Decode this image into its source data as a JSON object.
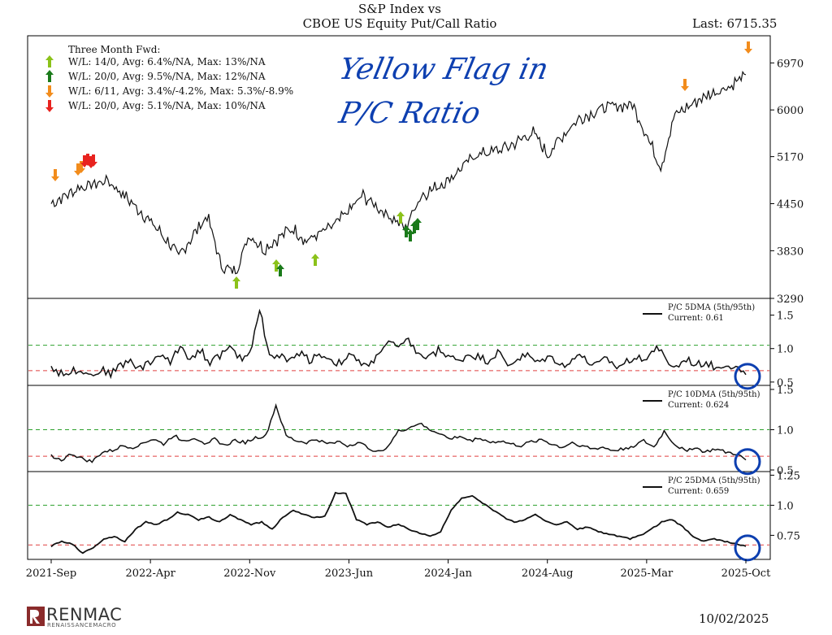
{
  "header": {
    "title_line1": "S&P Index vs",
    "title_line2": "CBOE US Equity Put/Call Ratio",
    "last_label": "Last: 6715.35"
  },
  "annotation": {
    "line1": "Yellow Flag in",
    "line2": "P/C Ratio"
  },
  "footer": {
    "logo_text": "RENMAC",
    "logo_sub": "RENAISSANCEMACRO",
    "date": "10/02/2025"
  },
  "colors": {
    "price_line": "#111111",
    "green_dash": "#2ca02c",
    "red_dash": "#e04040",
    "light_green_arrow": "#8bc21a",
    "dark_green_arrow": "#1a7a1a",
    "orange_arrow": "#f28c1c",
    "red_arrow": "#e8231f",
    "annotation_ink": "#0d3fb0"
  },
  "chart_data": [
    {
      "type": "line",
      "title": "S&P Index vs CBOE US Equity Put/Call Ratio",
      "x_ticks": [
        "2021-Sep",
        "2022-Apr",
        "2022-Nov",
        "2023-Jun",
        "2024-Jan",
        "2024-Aug",
        "2025-Mar",
        "2025-Oct"
      ],
      "y_ticks": [
        3290,
        3830,
        4450,
        5170,
        6000,
        6970
      ],
      "y_scale": "log",
      "ylim": [
        3290,
        7600
      ],
      "series": [
        {
          "x": [
            "2021-09",
            "2021-11",
            "2022-01",
            "2022-03",
            "2022-05",
            "2022-06",
            "2022-08",
            "2022-09",
            "2022-10",
            "2022-11",
            "2022-12",
            "2023-02",
            "2023-03",
            "2023-05",
            "2023-07",
            "2023-08",
            "2023-10",
            "2023-11",
            "2024-01",
            "2024-03",
            "2024-05",
            "2024-07",
            "2024-08",
            "2024-10",
            "2024-12",
            "2025-02",
            "2025-04",
            "2025-05",
            "2025-07",
            "2025-09",
            "2025-10"
          ],
          "values": [
            4450,
            4680,
            4790,
            4400,
            4000,
            3760,
            4280,
            3640,
            3580,
            4030,
            3850,
            4120,
            3950,
            4150,
            4560,
            4400,
            4120,
            4550,
            4800,
            5200,
            5300,
            5580,
            5200,
            5800,
            6050,
            6100,
            4980,
            5900,
            6250,
            6500,
            6715
          ]
        }
      ],
      "legend_title": "Three Month Fwd:",
      "legend": [
        {
          "arrow": "up",
          "color": "#8bc21a",
          "label": "W/L: 14/0, Avg: 6.4%/NA, Max: 13%/NA"
        },
        {
          "arrow": "up",
          "color": "#1a7a1a",
          "label": "W/L: 20/0, Avg: 9.5%/NA, Max: 12%/NA"
        },
        {
          "arrow": "down",
          "color": "#f28c1c",
          "label": "W/L: 6/11, Avg: 3.4%/-4.2%, Max: 5.3%/-8.9%"
        },
        {
          "arrow": "down",
          "color": "#e8231f",
          "label": "W/L: 20/0, Avg: 5.1%/NA, Max: 10%/NA"
        }
      ],
      "signals": [
        {
          "type": "orange",
          "dates": [
            "2021-09",
            "2021-11"
          ]
        },
        {
          "type": "red",
          "dates": [
            "2021-11",
            "2021-12"
          ]
        },
        {
          "type": "light_green",
          "dates": [
            "2022-10",
            "2022-11",
            "2023-02",
            "2023-10"
          ]
        },
        {
          "type": "dark_green",
          "dates": [
            "2022-12",
            "2023-10",
            "2023-11"
          ]
        },
        {
          "type": "orange",
          "dates": [
            "2025-05",
            "2025-10"
          ]
        }
      ],
      "legend_position": "top-left"
    },
    {
      "type": "line",
      "legend_label": "P/C 5DMA (5th/95th)",
      "current_label": "Current: 0.61",
      "y_ticks": [
        0.5,
        1.0,
        1.5
      ],
      "ylim": [
        0.45,
        1.75
      ],
      "thresholds": {
        "upper": 1.05,
        "lower": 0.67
      },
      "values": [
        0.73,
        0.62,
        0.66,
        0.7,
        0.6,
        0.68,
        0.63,
        0.75,
        0.82,
        0.7,
        0.8,
        0.92,
        0.78,
        1.05,
        0.85,
        0.98,
        0.8,
        0.9,
        1.0,
        0.85,
        0.92,
        1.6,
        0.88,
        0.9,
        0.8,
        0.95,
        0.83,
        0.92,
        0.85,
        0.78,
        0.9,
        0.8,
        0.72,
        0.95,
        1.1,
        1.0,
        1.12,
        0.92,
        0.85,
        0.98,
        0.9,
        0.8,
        0.92,
        0.88,
        0.82,
        0.95,
        0.75,
        0.85,
        0.9,
        0.78,
        0.88,
        0.82,
        0.72,
        0.95,
        0.8,
        0.75,
        0.85,
        0.72,
        0.8,
        0.9,
        0.83,
        1.05,
        0.8,
        0.72,
        0.85,
        0.75,
        0.8,
        0.7,
        0.78,
        0.72,
        0.61
      ]
    },
    {
      "type": "line",
      "legend_label": "P/C 10DMA (5th/95th)",
      "current_label": "Current: 0.624",
      "y_ticks": [
        0.5,
        1.0,
        1.5
      ],
      "ylim": [
        0.48,
        1.55
      ],
      "thresholds": {
        "upper": 1.0,
        "lower": 0.67
      },
      "values": [
        0.68,
        0.62,
        0.7,
        0.64,
        0.6,
        0.72,
        0.74,
        0.8,
        0.78,
        0.84,
        0.88,
        0.82,
        0.93,
        0.86,
        0.9,
        0.84,
        0.88,
        0.8,
        0.87,
        0.84,
        0.9,
        0.92,
        1.3,
        0.92,
        0.86,
        0.84,
        0.88,
        0.82,
        0.86,
        0.8,
        0.84,
        0.78,
        0.72,
        0.8,
        0.98,
        1.02,
        1.08,
        1.0,
        0.96,
        0.88,
        0.92,
        0.86,
        0.9,
        0.84,
        0.86,
        0.82,
        0.8,
        0.85,
        0.88,
        0.82,
        0.78,
        0.84,
        0.8,
        0.76,
        0.78,
        0.74,
        0.76,
        0.8,
        0.86,
        0.78,
        0.98,
        0.82,
        0.74,
        0.78,
        0.72,
        0.76,
        0.72,
        0.7,
        0.624
      ]
    },
    {
      "type": "line",
      "legend_label": "P/C 25DMA (5th/95th)",
      "current_label": "Current: 0.659",
      "y_ticks": [
        0.75,
        1.0,
        1.25
      ],
      "ylim": [
        0.55,
        1.28
      ],
      "thresholds": {
        "upper": 1.0,
        "lower": 0.67
      },
      "values": [
        0.66,
        0.7,
        0.68,
        0.6,
        0.65,
        0.72,
        0.74,
        0.7,
        0.8,
        0.86,
        0.84,
        0.88,
        0.94,
        0.92,
        0.88,
        0.9,
        0.86,
        0.92,
        0.88,
        0.84,
        0.86,
        0.8,
        0.9,
        0.96,
        0.92,
        0.9,
        0.91,
        1.1,
        1.1,
        0.88,
        0.84,
        0.86,
        0.82,
        0.84,
        0.8,
        0.77,
        0.74,
        0.78,
        0.96,
        1.06,
        1.08,
        1.02,
        0.96,
        0.9,
        0.86,
        0.88,
        0.92,
        0.87,
        0.84,
        0.86,
        0.8,
        0.82,
        0.78,
        0.76,
        0.74,
        0.72,
        0.75,
        0.8,
        0.86,
        0.88,
        0.82,
        0.74,
        0.7,
        0.72,
        0.7,
        0.68,
        0.659
      ]
    }
  ]
}
